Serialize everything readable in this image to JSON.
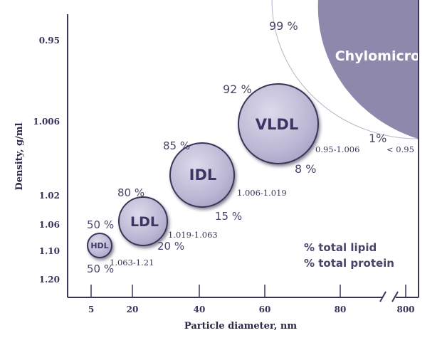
{
  "chart_data": {
    "type": "scatter",
    "xlabel": "Particle diameter, nm",
    "ylabel": "Density, g/ml",
    "x_ticks": [
      "5",
      "20",
      "40",
      "60",
      "80",
      "800"
    ],
    "y_ticks": [
      "0.95",
      "1.006",
      "1.02",
      "1.06",
      "1.10",
      "1.20"
    ],
    "axis_break": "x between 80 and 800",
    "legend": [
      "% total lipid",
      "% total protein"
    ],
    "colors": {
      "bubble": "#b9b6d4",
      "chylo": "#8f88ad",
      "axis": "#3a3458",
      "text": "#4a4468"
    },
    "particles": [
      {
        "name": "HDL",
        "diameter": "5",
        "density_range": "1.063-1.21",
        "lipid_pct": "50 %",
        "protein_pct": "50 %"
      },
      {
        "name": "LDL",
        "diameter": "20",
        "density_range": "1.019-1.063",
        "lipid_pct": "80 %",
        "protein_pct": "20 %"
      },
      {
        "name": "IDL",
        "diameter": "40",
        "density_range": "1.006-1.019",
        "lipid_pct": "85 %",
        "protein_pct": "15 %"
      },
      {
        "name": "VLDL",
        "diameter": "60",
        "density_range": "0.95-1.006",
        "lipid_pct": "92 %",
        "protein_pct": "8 %"
      },
      {
        "name": "Chylomicrons",
        "diameter": "800",
        "density_range": "< 0.95",
        "lipid_pct": "99 %",
        "protein_pct": "1%"
      }
    ]
  }
}
